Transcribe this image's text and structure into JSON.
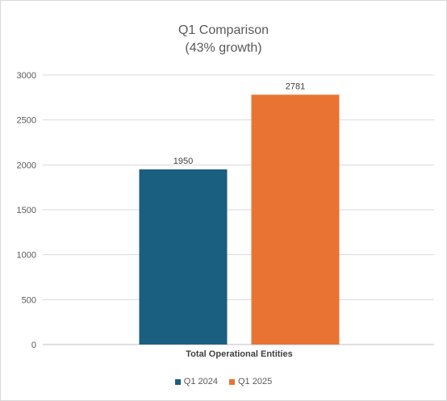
{
  "chart_data": {
    "type": "bar",
    "title": "Q1 Comparison",
    "subtitle": "(43% growth)",
    "categories": [
      "Total Operational Entities"
    ],
    "series": [
      {
        "name": "Q1 2024",
        "values": [
          1950
        ],
        "color": "#1a5e80"
      },
      {
        "name": "Q1 2025",
        "values": [
          2781
        ],
        "color": "#e97332"
      }
    ],
    "ylim": [
      0,
      3000
    ],
    "yticks": [
      0,
      500,
      1000,
      1500,
      2000,
      2500,
      3000
    ],
    "grid": true,
    "legend_position": "bottom",
    "data_labels": true
  }
}
